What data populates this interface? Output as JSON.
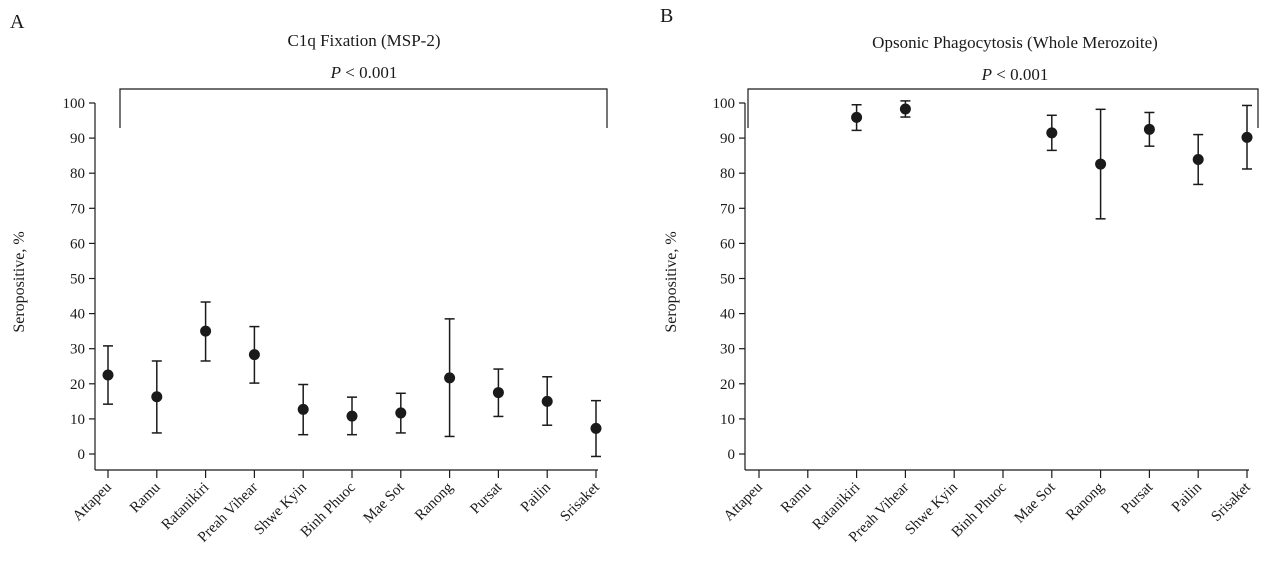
{
  "chart_data": [
    {
      "type": "scatter",
      "panel_label": "A",
      "title": "C1q Fixation (MSP-2)",
      "significance": {
        "prefix": "P",
        "text": " < 0.001"
      },
      "ylabel": "Seropositive, %",
      "ylim": [
        0,
        100
      ],
      "yticks": [
        0,
        10,
        20,
        30,
        40,
        50,
        60,
        70,
        80,
        90,
        100
      ],
      "categories": [
        "Attapeu",
        "Ramu",
        "Ratanikiri",
        "Preah Vihear",
        "Shwe Kyin",
        "Binh Phuoc",
        "Mae Sot",
        "Ranong",
        "Pursat",
        "Pailin",
        "Srisaket"
      ],
      "series": [
        {
          "values": [
            22.5,
            16.3,
            35.0,
            28.3,
            12.7,
            10.8,
            11.7,
            21.7,
            17.5,
            15.0,
            7.3
          ],
          "lower": [
            14.2,
            6.0,
            26.5,
            20.2,
            5.5,
            5.5,
            6.0,
            5.0,
            10.7,
            8.2,
            -0.7
          ],
          "upper": [
            30.8,
            26.5,
            43.3,
            36.3,
            19.8,
            16.2,
            17.3,
            38.5,
            24.2,
            22.0,
            15.2
          ]
        }
      ],
      "grid": false
    },
    {
      "type": "scatter",
      "panel_label": "B",
      "title": "Opsonic Phagocytosis (Whole Merozoite)",
      "significance": {
        "prefix": "P",
        "text": " < 0.001"
      },
      "ylabel": "Seropositive, %",
      "ylim": [
        0,
        100
      ],
      "yticks": [
        0,
        10,
        20,
        30,
        40,
        50,
        60,
        70,
        80,
        90,
        100
      ],
      "categories": [
        "Attapeu",
        "Ramu",
        "Ratanikiri",
        "Preah Vihear",
        "Shwe Kyin",
        "Binh Phuoc",
        "Mae Sot",
        "Ranong",
        "Pursat",
        "Pailin",
        "Srisaket"
      ],
      "series": [
        {
          "values": [
            null,
            null,
            95.9,
            98.3,
            null,
            null,
            91.5,
            82.6,
            92.5,
            83.9,
            90.2
          ],
          "lower": [
            null,
            null,
            92.2,
            96.0,
            null,
            null,
            86.5,
            67.0,
            87.7,
            76.8,
            81.2
          ],
          "upper": [
            null,
            null,
            99.5,
            100.6,
            null,
            null,
            96.5,
            98.2,
            97.3,
            91.0,
            99.3
          ]
        }
      ],
      "grid": false
    }
  ]
}
